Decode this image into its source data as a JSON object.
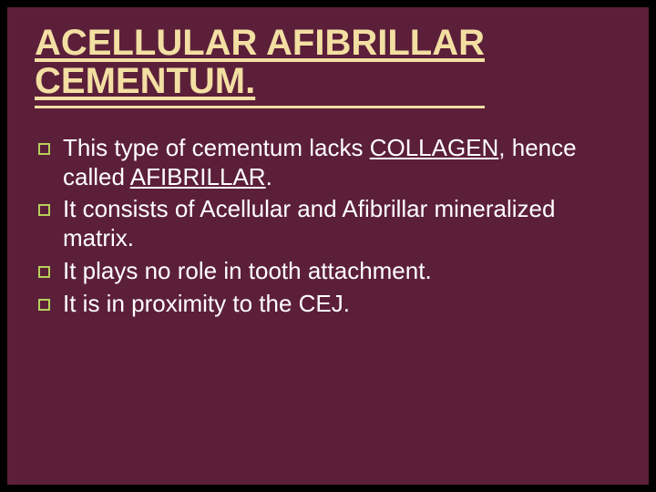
{
  "slide": {
    "background_outer": "#000000",
    "background_inner": "#5c1f3a",
    "title_color": "#f3dfa2",
    "text_color": "#ffffff",
    "bullet_border_color": "#b6cf5a",
    "title_fontsize": 40,
    "body_fontsize": 26,
    "title_line1": "ACELLULAR AFIBRILLAR",
    "title_line2": "CEMENTUM.",
    "bullets": [
      {
        "pre": "This type of cementum lacks ",
        "u1": "COLLAGEN",
        "mid": ", hence called ",
        "u2": "AFIBRILLAR",
        "post": "."
      },
      {
        "text": "It consists of Acellular and Afibrillar mineralized matrix."
      },
      {
        "text": "It plays no role in tooth attachment."
      },
      {
        "text": "It is in proximity to the CEJ."
      }
    ]
  }
}
